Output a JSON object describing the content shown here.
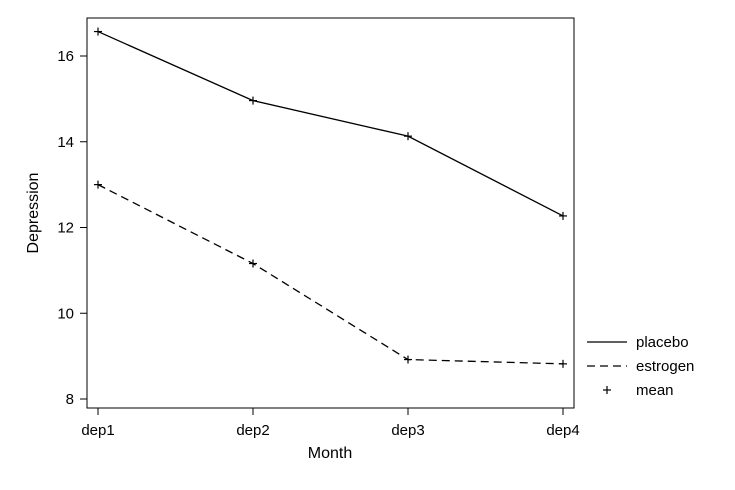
{
  "chart_data": {
    "type": "line",
    "title": "",
    "xlabel": "Month",
    "ylabel": "Depression",
    "categories": [
      "dep1",
      "dep2",
      "dep3",
      "dep4"
    ],
    "ylim": [
      8,
      17
    ],
    "yticks": [
      8,
      10,
      12,
      14,
      16
    ],
    "grid": false,
    "legend_position": "right-bottom",
    "series": [
      {
        "name": "placebo",
        "line_style": "solid",
        "values": [
          16.57,
          14.96,
          14.13,
          12.27
        ]
      },
      {
        "name": "estrogen",
        "line_style": "dashed",
        "values": [
          13.0,
          11.16,
          8.92,
          8.82
        ]
      }
    ],
    "marker_legend": {
      "name": "mean",
      "symbol": "+"
    },
    "colors": {
      "line": "#000000",
      "frame": "#000000",
      "background": "#ffffff"
    }
  }
}
